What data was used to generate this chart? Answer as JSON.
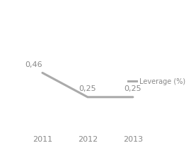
{
  "years": [
    2011,
    2012,
    2013
  ],
  "leverage": [
    0.46,
    0.25,
    0.25
  ],
  "data_labels": [
    "0,46",
    "0,25",
    "0,25"
  ],
  "line_color": "#aaaaaa",
  "line_width": 2.2,
  "legend_label": "Leverage (%)",
  "legend_color": "#aaaaaa",
  "xlabel_fontsize": 8,
  "label_fontsize": 8,
  "ylim": [
    -0.05,
    1.05
  ],
  "xlim": [
    2010.4,
    2014.2
  ],
  "background_color": "#ffffff",
  "label_color": "#888888"
}
